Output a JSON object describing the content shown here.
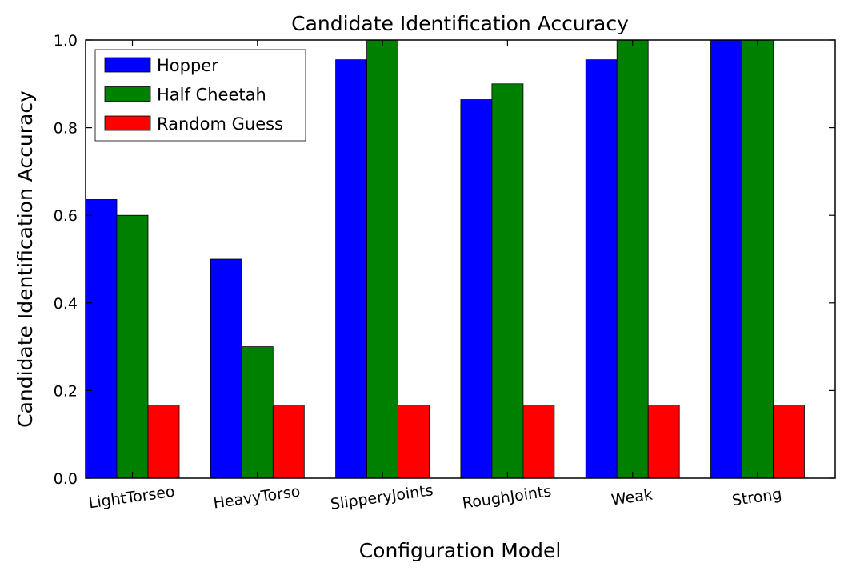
{
  "chart_data": {
    "type": "bar",
    "title": "Candidate Identification Accuracy",
    "xlabel": "Configuration Model",
    "ylabel": "Candidate Identification Accuracy",
    "categories": [
      "LightTorseo",
      "HeavyTorso",
      "SlipperyJoints",
      "RoughJoints",
      "Weak",
      "Strong"
    ],
    "series": [
      {
        "name": "Hopper",
        "color": "#0000ff",
        "values": [
          0.636,
          0.5,
          0.955,
          0.864,
          0.955,
          1.0
        ]
      },
      {
        "name": "Half Cheetah",
        "color": "#008000",
        "values": [
          0.6,
          0.3,
          1.0,
          0.9,
          1.0,
          1.0
        ]
      },
      {
        "name": "Random Guess",
        "color": "#ff0000",
        "values": [
          0.1667,
          0.1667,
          0.1667,
          0.1667,
          0.1667,
          0.1667
        ]
      }
    ],
    "ylim": [
      0.0,
      1.0
    ],
    "yticks": [
      "0.0",
      "0.2",
      "0.4",
      "0.6",
      "0.8",
      "1.0"
    ],
    "legend_position": "top-left",
    "grid": false
  }
}
